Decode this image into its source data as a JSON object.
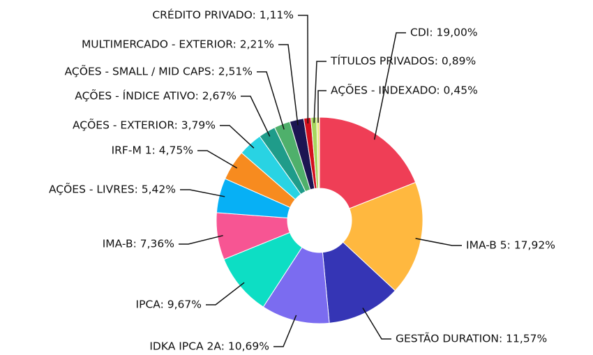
{
  "chart_data": {
    "type": "donut",
    "values": [
      19.0,
      17.92,
      11.57,
      10.69,
      9.67,
      7.36,
      5.42,
      4.75,
      3.79,
      2.67,
      2.51,
      2.21,
      1.11,
      0.89,
      0.45
    ],
    "value_labels": [
      "CDI: 19,00%",
      "IMA-B 5: 17,92%",
      "GESTÃO DURATION: 11,57%",
      "IDKA IPCA 2A: 10,69%",
      "IPCA: 9,67%",
      "IMA-B: 7,36%",
      "AÇÕES - LIVRES: 5,42%",
      "IRF-M 1: 4,75%",
      "AÇÕES - EXTERIOR: 3,79%",
      "AÇÕES - ÍNDICE ATIVO: 2,67%",
      "AÇÕES - SMALL / MID CAPS: 2,51%",
      "MULTIMERCADO - EXTERIOR: 2,21%",
      "CRÉDITO PRIVADO: 1,11%",
      "TÍTULOS PRIVADOS: 0,89%",
      "AÇÕES - INDEXADO: 0,45%"
    ],
    "colors": [
      "#ef3e56",
      "#ffb83f",
      "#3535b5",
      "#7b6cf0",
      "#0ddec4",
      "#f75593",
      "#07b0f5",
      "#f78b1f",
      "#29d3e3",
      "#1f9c8a",
      "#4fb06b",
      "#1c1552",
      "#d4101e",
      "#a7d65e",
      "#e8e87a"
    ]
  }
}
